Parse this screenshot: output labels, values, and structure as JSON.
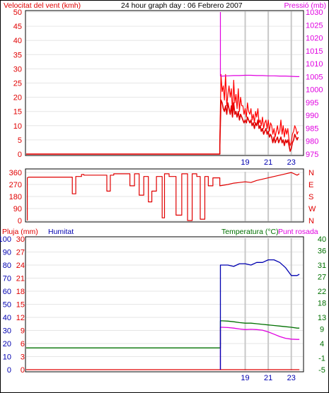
{
  "title": "24 hour graph day : 06 Febrero 2007",
  "colors": {
    "wind": "#e00000",
    "gust": "#ff0000",
    "pressure": "#e000e0",
    "humidity": "#0000b0",
    "temperature": "#007000",
    "dewpoint": "#e000e0",
    "rain": "#e00000",
    "winddir": "#e00000",
    "grid": "#c8c8c8"
  },
  "chart_data": [
    {
      "id": "wind_pressure",
      "type": "line",
      "title": "24 hour graph day : 06 Febrero 2007",
      "ylabel": "Velocitat del vent (kmh)",
      "y2label": "Pressió (mb)",
      "ylim": [
        0,
        50
      ],
      "y2lim": [
        975,
        1030
      ],
      "yticks": [
        0,
        5,
        10,
        15,
        20,
        25,
        30,
        35,
        40,
        45,
        50
      ],
      "y2ticks": [
        975,
        980,
        985,
        990,
        995,
        1000,
        1005,
        1010,
        1015,
        1020,
        1025,
        1030
      ],
      "xlim": [
        0,
        24
      ],
      "xticks": [
        19,
        21,
        23
      ],
      "grid": true,
      "series": [
        {
          "key": "gust",
          "axis": "left",
          "x": [
            0,
            16.8,
            16.8,
            16.9,
            17.0,
            17.1,
            17.2,
            17.3,
            17.4,
            17.5,
            17.6,
            17.7,
            17.8,
            17.9,
            18.0,
            18.1,
            18.2,
            18.3,
            18.4,
            18.5,
            18.6,
            18.7,
            18.8,
            18.9,
            19.0,
            19.1,
            19.2,
            19.3,
            19.4,
            19.5,
            19.6,
            19.7,
            19.8,
            19.9,
            20.0,
            20.1,
            20.2,
            20.3,
            20.4,
            20.5,
            20.6,
            20.7,
            20.8,
            20.9,
            21.0,
            21.1,
            21.2,
            21.3,
            21.4,
            21.5,
            21.6,
            21.7,
            21.8,
            21.9,
            22.0,
            22.1,
            22.2,
            22.3,
            22.4,
            22.5,
            22.6,
            22.7,
            22.8,
            22.9,
            23.0,
            23.1,
            23.2,
            23.3,
            23.4,
            23.5,
            23.6
          ],
          "values": [
            0,
            0,
            5,
            28,
            22,
            24,
            19,
            28,
            17,
            21,
            24,
            20,
            23,
            14,
            26,
            18,
            21,
            16,
            23,
            15,
            20,
            17,
            17,
            14,
            16,
            13,
            18,
            15,
            14,
            16,
            12,
            14,
            11,
            15,
            13,
            16,
            11,
            12,
            10,
            13,
            9,
            11,
            12,
            9,
            12,
            8,
            11,
            10,
            7,
            9,
            6,
            8,
            10,
            7,
            8,
            12,
            7,
            10,
            6,
            9,
            7,
            9,
            5,
            3,
            4,
            7,
            8,
            10,
            9,
            7,
            8
          ]
        },
        {
          "key": "wind",
          "axis": "left",
          "x": [
            0,
            16.8,
            16.8,
            16.9,
            17.0,
            17.1,
            17.2,
            17.3,
            17.4,
            17.5,
            17.6,
            17.7,
            17.8,
            17.9,
            18.0,
            18.1,
            18.2,
            18.3,
            18.4,
            18.5,
            18.6,
            18.7,
            18.8,
            18.9,
            19.0,
            19.1,
            19.2,
            19.3,
            19.4,
            19.5,
            19.6,
            19.7,
            19.8,
            19.9,
            20.0,
            20.1,
            20.2,
            20.3,
            20.4,
            20.5,
            20.6,
            20.7,
            20.8,
            20.9,
            21.0,
            21.1,
            21.2,
            21.3,
            21.4,
            21.5,
            21.6,
            21.7,
            21.8,
            21.9,
            22.0,
            22.1,
            22.2,
            22.3,
            22.4,
            22.5,
            22.6,
            22.7,
            22.8,
            22.9,
            23.0,
            23.1,
            23.2,
            23.3,
            23.4,
            23.5,
            23.6
          ],
          "values": [
            0,
            0,
            3,
            19,
            18,
            16,
            15,
            17,
            14,
            18,
            16,
            14,
            17,
            13,
            18,
            14,
            15,
            13,
            15,
            12,
            14,
            13,
            12,
            11,
            12,
            11,
            13,
            12,
            11,
            12,
            10,
            11,
            9,
            11,
            10,
            12,
            9,
            10,
            8,
            9,
            7,
            8,
            9,
            7,
            8,
            6,
            7,
            6,
            4,
            6,
            4,
            5,
            6,
            4,
            5,
            6,
            4,
            5,
            3,
            5,
            4,
            5,
            3,
            1,
            2,
            4,
            5,
            7,
            6,
            5,
            6
          ]
        },
        {
          "key": "pressure",
          "axis": "right",
          "x": [
            16.85,
            16.85,
            17.0,
            17.5,
            18.0,
            18.5,
            19.0,
            19.5,
            20.0,
            20.5,
            21.0,
            21.5,
            22.0,
            22.5,
            23.0,
            23.5,
            23.7
          ],
          "values": [
            1030,
            1005.2,
            1005.2,
            1005.3,
            1005.4,
            1005.4,
            1005.5,
            1005.5,
            1005.4,
            1005.4,
            1005.3,
            1005.3,
            1005.2,
            1005.2,
            1005.1,
            1005.0,
            1005.0
          ]
        }
      ]
    },
    {
      "id": "wind_direction",
      "type": "line",
      "ylim": [
        0,
        360
      ],
      "yticks": [
        0,
        90,
        180,
        270,
        360
      ],
      "y2ticks": [
        "N",
        "W",
        "S",
        "E",
        "N"
      ],
      "xlim": [
        0,
        24
      ],
      "grid": true,
      "series": [
        {
          "key": "winddir",
          "axis": "left",
          "x": [
            0.1,
            0.1,
            0.2,
            4.0,
            4.0,
            4.3,
            4.3,
            4.8,
            4.8,
            5.0,
            5.0,
            7.0,
            7.0,
            7.3,
            7.3,
            7.6,
            7.6,
            9.0,
            9.0,
            9.4,
            9.4,
            9.8,
            9.8,
            10.2,
            10.2,
            10.6,
            10.6,
            10.9,
            10.9,
            11.3,
            11.3,
            11.8,
            11.8,
            12.0,
            12.0,
            12.4,
            12.4,
            13.0,
            13.0,
            13.5,
            13.5,
            14.0,
            14.0,
            14.4,
            14.4,
            14.8,
            14.8,
            15.1,
            15.1,
            15.5,
            15.5,
            15.8,
            15.8,
            16.2,
            16.2,
            16.8,
            16.8,
            17.5,
            18.0,
            18.5,
            19.0,
            19.5,
            20.0,
            20.5,
            21.0,
            21.5,
            22.0,
            22.5,
            23.0,
            23.5,
            23.7
          ],
          "values": [
            0,
            320,
            325,
            325,
            200,
            200,
            330,
            330,
            345,
            345,
            340,
            340,
            220,
            220,
            340,
            340,
            350,
            350,
            260,
            260,
            350,
            350,
            190,
            190,
            330,
            330,
            140,
            140,
            220,
            220,
            330,
            330,
            20,
            20,
            350,
            350,
            330,
            330,
            40,
            40,
            350,
            350,
            0,
            0,
            350,
            350,
            330,
            330,
            10,
            10,
            330,
            330,
            260,
            260,
            320,
            320,
            260,
            270,
            280,
            285,
            290,
            285,
            300,
            310,
            320,
            330,
            340,
            350,
            360,
            340,
            350
          ]
        }
      ]
    },
    {
      "id": "temp_humidity",
      "type": "line",
      "ylabel": "Pluja (mm)",
      "ylabel2": "Humitat",
      "y2label": "Temperatura (°C)",
      "y2label2": "Punt rosada",
      "ylim": [
        0,
        30
      ],
      "yticks": [
        0,
        3,
        6,
        9,
        12,
        15,
        18,
        21,
        24,
        27,
        30
      ],
      "humidity_ticks": [
        0,
        10,
        20,
        30,
        40,
        50,
        60,
        70,
        80,
        90,
        100
      ],
      "y2lim": [
        -5,
        40
      ],
      "y2ticks": [
        -5,
        -1,
        4,
        9,
        13,
        18,
        22,
        27,
        31,
        36,
        40
      ],
      "xlim": [
        0,
        24
      ],
      "xticks": [
        19,
        21,
        23
      ],
      "grid": true,
      "series": [
        {
          "key": "rain",
          "axis": "rain",
          "x": [
            0,
            23.7
          ],
          "values": [
            0,
            0
          ]
        },
        {
          "key": "temperature",
          "axis": "right",
          "x": [
            0,
            16.85,
            16.85,
            17.0,
            17.5,
            18.0,
            18.5,
            19.0,
            19.5,
            20.0,
            20.5,
            21.0,
            21.5,
            22.0,
            22.5,
            23.0,
            23.5,
            23.7
          ],
          "values": [
            2.5,
            2.5,
            11.8,
            11.8,
            11.7,
            11.5,
            11.2,
            11.0,
            11.0,
            10.8,
            10.6,
            10.4,
            10.2,
            10.0,
            9.8,
            9.6,
            9.3,
            9.3
          ]
        },
        {
          "key": "dewpoint",
          "axis": "right",
          "x": [
            16.85,
            16.85,
            17.0,
            17.5,
            18.0,
            18.5,
            19.0,
            19.5,
            20.0,
            20.5,
            21.0,
            21.5,
            22.0,
            22.5,
            23.0,
            23.5,
            23.7
          ],
          "values": [
            -5,
            9.6,
            9.6,
            9.5,
            9.3,
            9.0,
            8.8,
            8.9,
            8.8,
            8.6,
            8.0,
            7.2,
            6.4,
            5.8,
            5.5,
            5.4,
            5.4
          ]
        },
        {
          "key": "humidity",
          "axis": "humidity",
          "x": [
            16.85,
            16.85,
            17.0,
            17.5,
            18.0,
            18.5,
            19.0,
            19.5,
            20.0,
            20.5,
            21.0,
            21.5,
            22.0,
            22.5,
            23.0,
            23.5,
            23.7
          ],
          "values": [
            0,
            80,
            80,
            80,
            79,
            81,
            81,
            80,
            82,
            82,
            84,
            84,
            82,
            78,
            72,
            72,
            73
          ]
        }
      ]
    }
  ]
}
